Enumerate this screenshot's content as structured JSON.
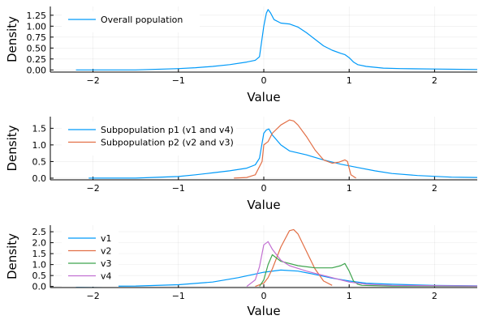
{
  "chart_data": [
    {
      "type": "line",
      "title": "",
      "xlabel": "Value",
      "ylabel": "Density",
      "xlim": [
        -2.5,
        2.5
      ],
      "ylim": [
        -0.05,
        1.45
      ],
      "xticks": [
        -2,
        -1,
        0,
        1,
        2
      ],
      "xtick_labels": [
        "−2",
        "−1",
        "0",
        "1",
        "2"
      ],
      "yticks": [
        0,
        0.25,
        0.5,
        0.75,
        1.0,
        1.25
      ],
      "ytick_labels": [
        "0.00",
        "0.25",
        "0.50",
        "0.75",
        "1.00",
        "1.25"
      ],
      "grid": true,
      "legend_position": "top-left",
      "series": [
        {
          "name": "Overall population",
          "color": "#009af9",
          "x": [
            -2.2,
            -1.5,
            -1.0,
            -0.8,
            -0.6,
            -0.4,
            -0.2,
            -0.1,
            -0.05,
            0.0,
            0.03,
            0.05,
            0.08,
            0.12,
            0.2,
            0.3,
            0.4,
            0.5,
            0.6,
            0.7,
            0.8,
            0.9,
            0.95,
            1.0,
            1.05,
            1.1,
            1.2,
            1.4,
            1.6,
            2.0,
            2.5
          ],
          "y": [
            0.0,
            0.0,
            0.03,
            0.05,
            0.08,
            0.12,
            0.18,
            0.22,
            0.3,
            1.0,
            1.3,
            1.38,
            1.3,
            1.15,
            1.07,
            1.05,
            0.98,
            0.85,
            0.7,
            0.55,
            0.45,
            0.38,
            0.35,
            0.28,
            0.18,
            0.12,
            0.08,
            0.04,
            0.03,
            0.02,
            0.01
          ]
        }
      ]
    },
    {
      "type": "line",
      "title": "",
      "xlabel": "Value",
      "ylabel": "Density",
      "xlim": [
        -2.5,
        2.5
      ],
      "ylim": [
        -0.05,
        1.85
      ],
      "xticks": [
        -2,
        -1,
        0,
        1,
        2
      ],
      "xtick_labels": [
        "−2",
        "−1",
        "0",
        "1",
        "2"
      ],
      "yticks": [
        0,
        0.5,
        1.0,
        1.5
      ],
      "ytick_labels": [
        "0.0",
        "0.5",
        "1.0",
        "1.5"
      ],
      "grid": true,
      "legend_position": "top-left",
      "series": [
        {
          "name": "Subpopulation p1 (v1 and v4)",
          "color": "#009af9",
          "x": [
            -2.05,
            -1.5,
            -1.0,
            -0.8,
            -0.6,
            -0.4,
            -0.2,
            -0.1,
            -0.05,
            0.0,
            0.03,
            0.06,
            0.1,
            0.2,
            0.3,
            0.5,
            0.7,
            0.9,
            1.1,
            1.3,
            1.5,
            1.8,
            2.2,
            2.5
          ],
          "y": [
            0.0,
            0.0,
            0.05,
            0.1,
            0.16,
            0.22,
            0.3,
            0.4,
            0.6,
            1.35,
            1.45,
            1.48,
            1.3,
            1.0,
            0.82,
            0.7,
            0.55,
            0.42,
            0.32,
            0.22,
            0.14,
            0.08,
            0.03,
            0.02
          ]
        },
        {
          "name": "Subpopulation p2 (v2 and v3)",
          "color": "#e26f46",
          "x": [
            -0.35,
            -0.2,
            -0.1,
            -0.02,
            0.0,
            0.05,
            0.1,
            0.2,
            0.3,
            0.35,
            0.4,
            0.5,
            0.6,
            0.7,
            0.8,
            0.88,
            0.95,
            0.98,
            1.02,
            1.08
          ],
          "y": [
            0.0,
            0.02,
            0.1,
            0.5,
            1.0,
            1.1,
            1.35,
            1.6,
            1.75,
            1.72,
            1.6,
            1.25,
            0.85,
            0.55,
            0.45,
            0.48,
            0.55,
            0.5,
            0.1,
            0.0
          ]
        }
      ]
    },
    {
      "type": "line",
      "title": "",
      "xlabel": "Value",
      "ylabel": "Density",
      "xlim": [
        -2.5,
        2.5
      ],
      "ylim": [
        -0.05,
        2.8
      ],
      "xticks": [
        -2,
        -1,
        0,
        1,
        2
      ],
      "xtick_labels": [
        "−2",
        "−1",
        "0",
        "1",
        "2"
      ],
      "yticks": [
        0,
        0.5,
        1.0,
        1.5,
        2.0,
        2.5
      ],
      "ytick_labels": [
        "0.0",
        "0.5",
        "1.0",
        "1.5",
        "2.0",
        "2.5"
      ],
      "grid": true,
      "legend_position": "top-left",
      "series": [
        {
          "name": "v1",
          "color": "#009af9",
          "x": [
            -2.2,
            -1.5,
            -1.0,
            -0.6,
            -0.3,
            0.0,
            0.2,
            0.4,
            0.6,
            0.8,
            1.0,
            1.2,
            1.5,
            2.0,
            2.5
          ],
          "y": [
            0.0,
            0.02,
            0.08,
            0.2,
            0.4,
            0.65,
            0.75,
            0.7,
            0.55,
            0.38,
            0.25,
            0.15,
            0.1,
            0.05,
            0.03
          ]
        },
        {
          "name": "v2",
          "color": "#e26f46",
          "x": [
            -0.1,
            0.0,
            0.05,
            0.1,
            0.2,
            0.3,
            0.35,
            0.4,
            0.5,
            0.6,
            0.7,
            0.8
          ],
          "y": [
            0.0,
            0.15,
            0.4,
            0.8,
            1.8,
            2.55,
            2.6,
            2.4,
            1.6,
            0.8,
            0.25,
            0.05
          ]
        },
        {
          "name": "v3",
          "color": "#3ea44e",
          "x": [
            -0.05,
            0.0,
            0.05,
            0.1,
            0.2,
            0.4,
            0.6,
            0.8,
            0.9,
            0.95,
            1.0,
            1.05,
            1.1,
            1.15,
            1.5,
            2.5
          ],
          "y": [
            0.0,
            0.3,
            1.0,
            1.45,
            1.15,
            0.95,
            0.85,
            0.85,
            0.95,
            1.05,
            0.7,
            0.25,
            0.1,
            0.05,
            0.02,
            0.01
          ]
        },
        {
          "name": "v4",
          "color": "#c271d2",
          "x": [
            -0.2,
            -0.1,
            -0.05,
            0.0,
            0.05,
            0.1,
            0.2,
            0.3,
            0.5,
            0.7,
            0.9,
            1.0,
            1.2,
            1.5,
            2.5
          ],
          "y": [
            0.0,
            0.3,
            0.9,
            1.9,
            2.05,
            1.7,
            1.2,
            0.95,
            0.7,
            0.5,
            0.3,
            0.2,
            0.1,
            0.05,
            0.02
          ]
        }
      ]
    }
  ]
}
